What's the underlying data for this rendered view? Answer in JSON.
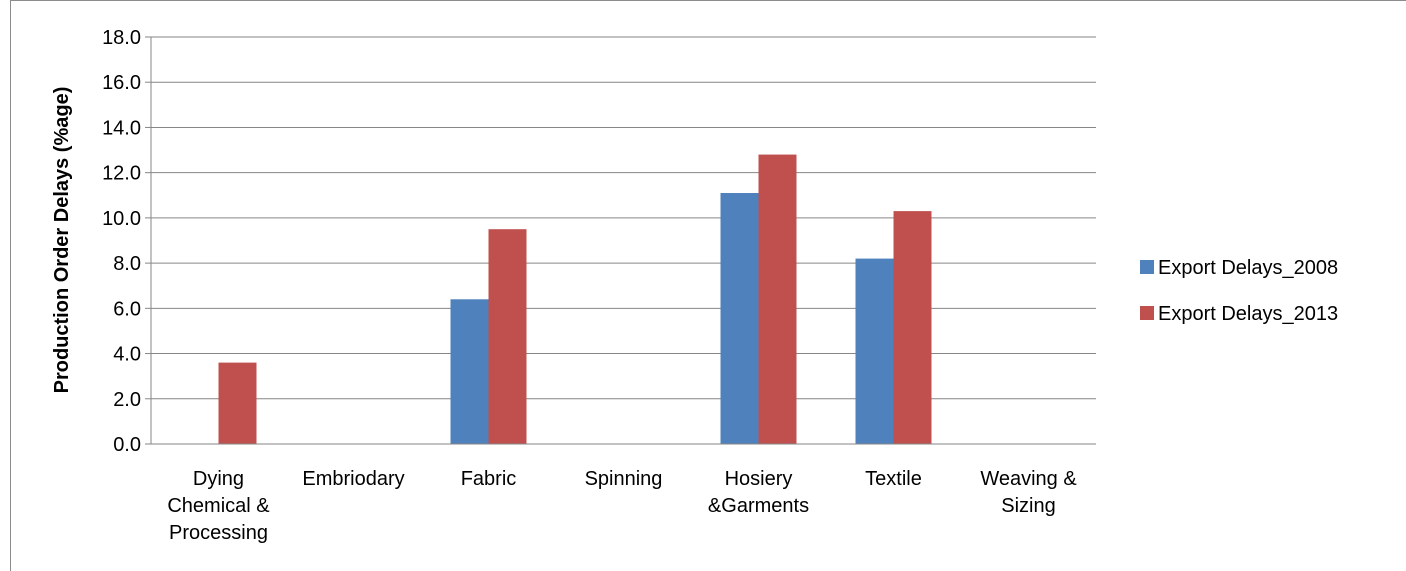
{
  "chart_data": {
    "type": "bar",
    "title": "",
    "xlabel": "",
    "ylabel": "Production Order Delays (%age)",
    "ylim": [
      0,
      18
    ],
    "ytick_step": 2,
    "ytick_labels": [
      "0.0",
      "2.0",
      "4.0",
      "6.0",
      "8.0",
      "10.0",
      "12.0",
      "14.0",
      "16.0",
      "18.0"
    ],
    "grid": true,
    "legend_position": "right",
    "categories": [
      [
        "Dying",
        "Chemical &",
        "Processing"
      ],
      [
        "Embriodary"
      ],
      [
        "Fabric"
      ],
      [
        "Spinning"
      ],
      [
        "Hosiery",
        "&Garments"
      ],
      [
        "Textile"
      ],
      [
        "Weaving &",
        "Sizing"
      ]
    ],
    "series": [
      {
        "name": "Export Delays_2008",
        "color": "#4f81bd",
        "values": [
          0,
          0,
          6.4,
          0,
          11.1,
          8.2,
          0
        ]
      },
      {
        "name": "Export Delays_2013",
        "color": "#c0504d",
        "values": [
          3.6,
          0,
          9.5,
          0,
          12.8,
          10.3,
          0
        ]
      }
    ]
  }
}
